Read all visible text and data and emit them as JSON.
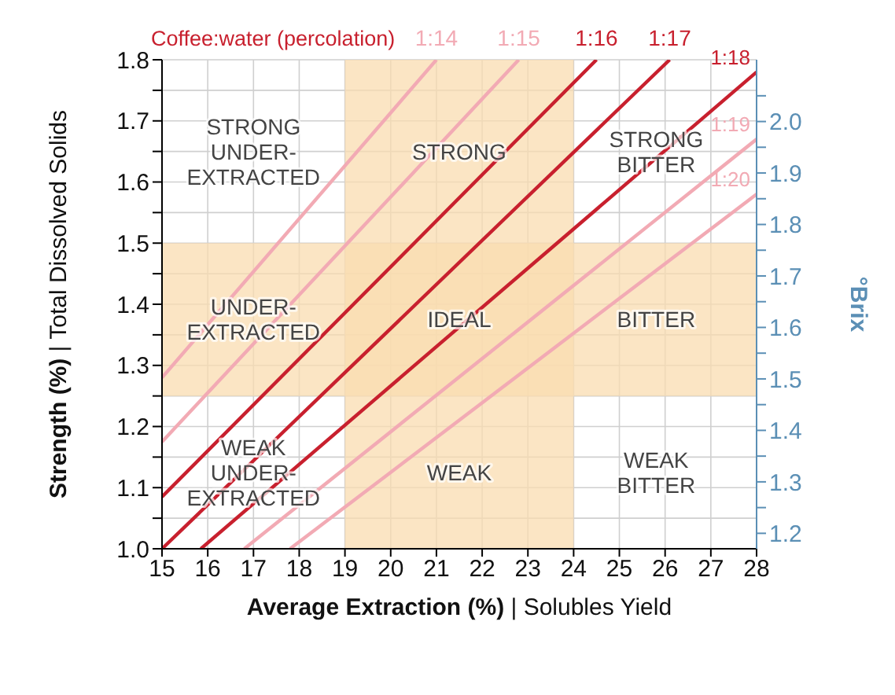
{
  "chart_data": {
    "type": "line",
    "title": "Coffee:water (percolation)",
    "xlabel": "Average Extraction (%) | Solubles Yield",
    "ylabel": "Strength (%) | Total Dissolved Solids",
    "y2label": "°Brix",
    "series": [
      {
        "name": "1:14",
        "color": "#f2aab4",
        "x": [
          15,
          21.0
        ],
        "values": [
          1.28,
          1.8
        ]
      },
      {
        "name": "1:15",
        "color": "#f2aab4",
        "x": [
          15,
          22.8
        ],
        "values": [
          1.175,
          1.8
        ]
      },
      {
        "name": "1:16",
        "color": "#c8202e",
        "x": [
          15,
          24.5
        ],
        "values": [
          1.085,
          1.8
        ]
      },
      {
        "name": "1:17",
        "color": "#c8202e",
        "x": [
          15,
          26.1
        ],
        "values": [
          1.0,
          1.8
        ]
      },
      {
        "name": "1:18",
        "color": "#c8202e",
        "x": [
          15.85,
          28
        ],
        "values": [
          1.0,
          1.78
        ]
      },
      {
        "name": "1:19",
        "color": "#f2aab4",
        "x": [
          16.8,
          28
        ],
        "values": [
          1.0,
          1.67
        ]
      },
      {
        "name": "1:20",
        "color": "#f2aab4",
        "x": [
          17.8,
          28
        ],
        "values": [
          1.0,
          1.58
        ]
      }
    ],
    "bands": [
      {
        "axis": "x",
        "from": 19,
        "to": 24,
        "color": "#f9dcb0"
      },
      {
        "axis": "y",
        "from": 1.25,
        "to": 1.5,
        "color": "#f9dcb0"
      }
    ],
    "annotations": [
      "STRONG\nUNDER-\nEXTRACTED",
      "STRONG",
      "STRONG\nBITTER",
      "UNDER-\nEXTRACTED",
      "IDEAL",
      "BITTER",
      "WEAK\nUNDER-\nEXTRACTED",
      "WEAK",
      "WEAK\nBITTER"
    ],
    "xlim": [
      15,
      28
    ],
    "xticks": [
      15,
      16,
      17,
      18,
      19,
      20,
      21,
      22,
      23,
      24,
      25,
      26,
      27,
      28
    ],
    "ylim": [
      1.0,
      1.8
    ],
    "yticks": [
      {
        "value": 1,
        "label": "1.0"
      },
      {
        "value": 1.05,
        "label": null
      },
      1.1,
      {
        "value": 1.15,
        "label": null
      },
      1.2,
      {
        "value": 1.25,
        "label": null
      },
      1.3,
      {
        "value": 1.35,
        "label": null
      },
      1.4,
      {
        "value": 1.45,
        "label": null
      },
      1.5,
      {
        "value": 1.55,
        "label": null
      },
      1.6,
      {
        "value": 1.65,
        "label": null
      },
      1.7,
      {
        "value": 1.75,
        "label": null
      },
      1.8
    ],
    "y2lim": [
      1.17,
      2.12
    ],
    "y2ticks": [
      1.2,
      {
        "value": 1.25,
        "label": null
      },
      1.3,
      {
        "value": 1.35,
        "label": null
      },
      1.4,
      {
        "value": 1.45,
        "label": null
      },
      1.5,
      {
        "value": 1.55,
        "label": null
      },
      1.6,
      {
        "value": 1.65,
        "label": null
      },
      1.7,
      {
        "value": 1.75,
        "label": null
      },
      1.8,
      {
        "value": 1.85,
        "label": null
      },
      1.9,
      {
        "value": 1.95,
        "label": null
      },
      {
        "value": 2,
        "label": "2.0"
      },
      {
        "value": 2.05,
        "label": null
      }
    ],
    "grid": true,
    "legend": false,
    "marker": "none",
    "line_style": "solid"
  }
}
